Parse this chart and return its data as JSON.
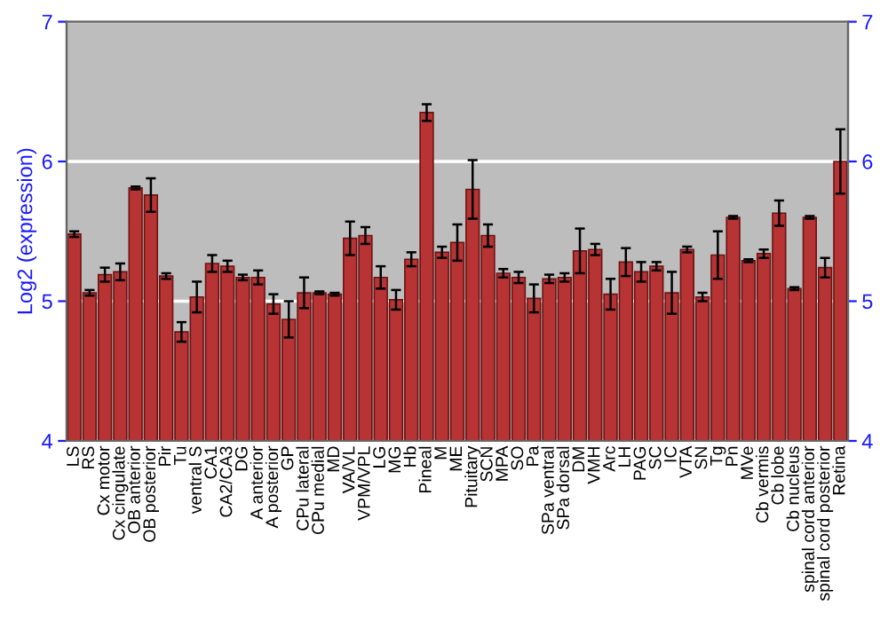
{
  "chart_data": {
    "type": "bar",
    "ylabel": "Log2 (expression)",
    "categories": [
      "LS",
      "RS",
      "Cx motor",
      "Cx cingulate",
      "OB anterior",
      "OB posterior",
      "Pir",
      "Tu",
      "ventral S",
      "CA1",
      "CA2/CA3",
      "DG",
      "A anterior",
      "A posterior",
      "GP",
      "CPu lateral",
      "CPu medial",
      "MD",
      "VA/VL",
      "VPM/VPL",
      "LG",
      "MG",
      "Hb",
      "Pineal",
      "M",
      "ME",
      "Pituitary",
      "SCN",
      "MPA",
      "SO",
      "Pa",
      "SPa ventral",
      "SPa dorsal",
      "DM",
      "VMH",
      "Arc",
      "LH",
      "PAG",
      "SC",
      "IC",
      "VTA",
      "SN",
      "Tg",
      "Pn",
      "MVe",
      "Cb vermis",
      "Cb lobe",
      "Cb nucleus",
      "spinal cord anterior",
      "spinal cord posterior",
      "Retina"
    ],
    "values": [
      5.48,
      5.06,
      5.19,
      5.21,
      5.81,
      5.76,
      5.18,
      4.78,
      5.03,
      5.27,
      5.25,
      5.17,
      5.17,
      4.98,
      4.87,
      5.06,
      5.06,
      5.05,
      5.45,
      5.47,
      5.17,
      5.01,
      5.3,
      6.35,
      5.35,
      5.42,
      5.8,
      5.47,
      5.2,
      5.17,
      5.02,
      5.16,
      5.17,
      5.36,
      5.37,
      5.05,
      5.28,
      5.21,
      5.25,
      5.06,
      5.37,
      5.03,
      5.33,
      5.6,
      5.29,
      5.34,
      5.63,
      5.09,
      5.6,
      5.24,
      6.0
    ],
    "errors": [
      0.02,
      0.02,
      0.05,
      0.06,
      0.01,
      0.12,
      0.02,
      0.07,
      0.11,
      0.06,
      0.04,
      0.02,
      0.05,
      0.07,
      0.13,
      0.11,
      0.01,
      0.01,
      0.12,
      0.06,
      0.08,
      0.07,
      0.05,
      0.06,
      0.04,
      0.13,
      0.21,
      0.08,
      0.03,
      0.04,
      0.1,
      0.03,
      0.03,
      0.16,
      0.04,
      0.11,
      0.1,
      0.07,
      0.03,
      0.15,
      0.02,
      0.03,
      0.17,
      0.01,
      0.01,
      0.03,
      0.09,
      0.01,
      0.01,
      0.07,
      0.23
    ],
    "color": "#b83434",
    "ylim": [
      4,
      7
    ],
    "yticks": [
      4,
      5,
      6,
      7
    ],
    "y2lim": [
      4,
      7
    ],
    "y2ticks": [
      4,
      5,
      6,
      7
    ],
    "grid": "y",
    "legend": false
  }
}
